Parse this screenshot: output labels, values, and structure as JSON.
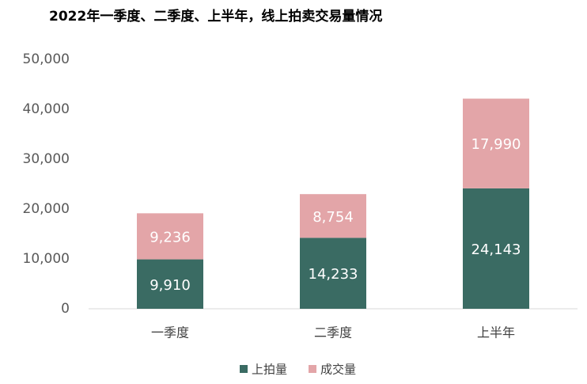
{
  "chart_data": {
    "type": "stacked-bar",
    "title": "2022年一季度、二季度、上半年，线上拍卖交易量情况",
    "categories": [
      "一季度",
      "二季度",
      "上半年"
    ],
    "series": [
      {
        "name": "上拍量",
        "color": "#3a6b63",
        "values": [
          9910,
          14233,
          24143
        ],
        "value_labels": [
          "9,910",
          "14,233",
          "24,143"
        ]
      },
      {
        "name": "成交量",
        "color": "#e3a5a8",
        "values": [
          9236,
          8754,
          17990
        ],
        "value_labels": [
          "9,236",
          "8,754",
          "17,990"
        ]
      }
    ],
    "ylim": [
      0,
      50000
    ],
    "yticks": [
      0,
      {
        "value": 10000,
        "label": "10,000"
      },
      {
        "value": 20000,
        "label": "20,000"
      },
      {
        "value": 30000,
        "label": "30,000"
      },
      {
        "value": 40000,
        "label": "40,000"
      },
      {
        "value": 50000,
        "label": "50,000"
      }
    ],
    "legend": "bottom"
  }
}
